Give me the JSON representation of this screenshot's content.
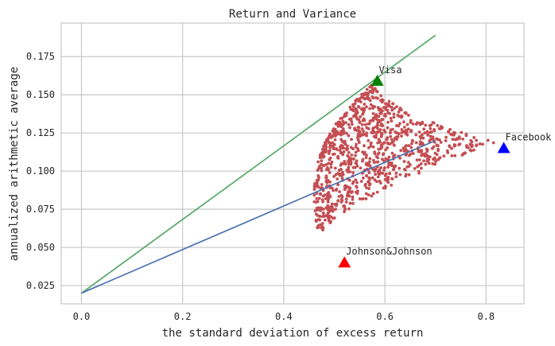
{
  "chart_data": {
    "type": "scatter",
    "title": "Return and Variance",
    "xlabel": "the standard deviation of excess return",
    "ylabel": "annualized arithmetic average",
    "xlim": [
      -0.04,
      0.875
    ],
    "ylim": [
      0.013,
      0.197
    ],
    "x_ticks": [
      0.0,
      0.2,
      0.4,
      0.6,
      0.8
    ],
    "x_tick_labels": [
      "0.0",
      "0.2",
      "0.4",
      "0.6",
      "0.8"
    ],
    "y_ticks": [
      0.025,
      0.05,
      0.075,
      0.1,
      0.125,
      0.15,
      0.175
    ],
    "y_tick_labels": [
      "0.025",
      "0.050",
      "0.075",
      "0.100",
      "0.125",
      "0.150",
      "0.175"
    ],
    "grid": true,
    "colors": {
      "background": "#ffffff",
      "grid": "#cccccc",
      "portfolio_points": "#c44e52",
      "green_line": "#55a868",
      "blue_line": "#4c72b0",
      "triangle_red": "#ff0000",
      "triangle_green": "#008000",
      "triangle_blue": "#0000ff"
    },
    "portfolio_cloud": {
      "count": 1000,
      "frontier_min": {
        "x": 0.46,
        "y": 0.085
      },
      "frontier_top": {
        "x": 0.58,
        "y": 0.158
      },
      "frontier_bottom": {
        "x": 0.47,
        "y": 0.057
      },
      "tip": {
        "x": 0.82,
        "y": 0.119
      }
    },
    "lines": [
      {
        "color": "#55a868",
        "x": [
          0.0,
          0.7
        ],
        "y": [
          0.02,
          0.189
        ]
      },
      {
        "color": "#4c72b0",
        "x": [
          0.0,
          0.7
        ],
        "y": [
          0.02,
          0.12
        ]
      }
    ],
    "annotations": [
      {
        "label": "Visa",
        "x": 0.585,
        "y": 0.159,
        "color": "#008000",
        "marker": "triangle"
      },
      {
        "label": "Facebook",
        "x": 0.835,
        "y": 0.115,
        "color": "#0000ff",
        "marker": "triangle"
      },
      {
        "label": "Johnson&Johnson",
        "x": 0.52,
        "y": 0.04,
        "color": "#ff0000",
        "marker": "triangle"
      }
    ]
  }
}
